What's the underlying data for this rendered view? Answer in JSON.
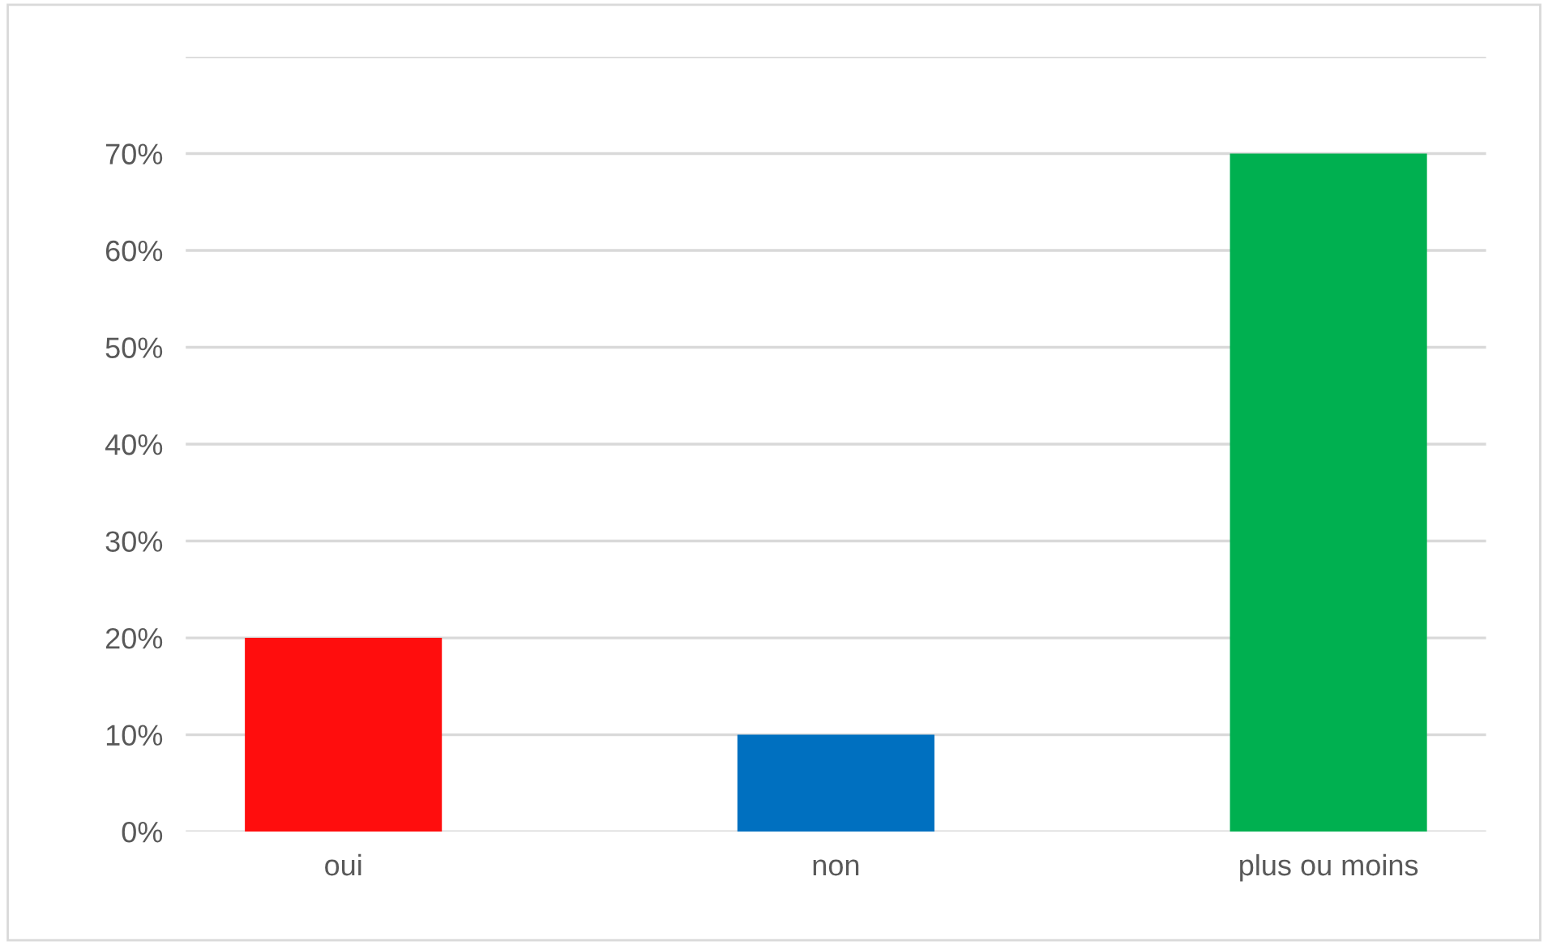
{
  "chart_data": {
    "type": "bar",
    "categories": [
      "oui",
      "non",
      "plus ou moins"
    ],
    "values": [
      20,
      10,
      70
    ],
    "colors": [
      "#ff0d0d",
      "#0070c0",
      "#00b050"
    ],
    "ylim": [
      0,
      80
    ],
    "yticks": [
      {
        "value": 0,
        "label": "0%"
      },
      {
        "value": 10,
        "label": "10%"
      },
      {
        "value": 20,
        "label": "20%"
      },
      {
        "value": 30,
        "label": "30%"
      },
      {
        "value": 40,
        "label": "40%"
      },
      {
        "value": 50,
        "label": "50%"
      },
      {
        "value": 60,
        "label": "60%"
      },
      {
        "value": 70,
        "label": "70%"
      },
      {
        "value": 80,
        "label": null
      }
    ],
    "grid": "y"
  }
}
